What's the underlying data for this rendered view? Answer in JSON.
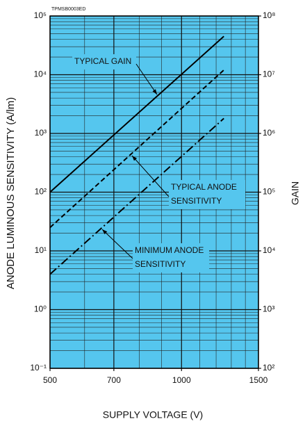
{
  "chart_data": {
    "type": "line",
    "code": "TPMSB0003ED",
    "xlabel": "SUPPLY VOLTAGE (V)",
    "ylabel": "ANODE LUMINOUS SENSITIVITY (A/lm)",
    "y2label": "GAIN",
    "xscale": "log",
    "yscale": "log",
    "y2scale": "log",
    "background": "#55c6ee",
    "grid": true,
    "xlim": [
      500,
      1500
    ],
    "xticks": [
      500,
      700,
      1000,
      1500
    ],
    "ylim": [
      0.1,
      100000
    ],
    "yticks": [
      {
        "value": 0.1,
        "label": "10⁻¹"
      },
      {
        "value": 1,
        "label": "10⁰"
      },
      {
        "value": 10,
        "label": "10¹"
      },
      {
        "value": 100,
        "label": "10²"
      },
      {
        "value": 1000,
        "label": "10³"
      },
      {
        "value": 10000,
        "label": "10⁴"
      },
      {
        "value": 100000,
        "label": "10⁵"
      }
    ],
    "y2lim": [
      100,
      100000000
    ],
    "y2ticks": [
      {
        "value": 100,
        "label": "10²"
      },
      {
        "value": 1000,
        "label": "10³"
      },
      {
        "value": 10000,
        "label": "10⁴"
      },
      {
        "value": 100000,
        "label": "10⁵"
      },
      {
        "value": 1000000,
        "label": "10⁶"
      },
      {
        "value": 10000000,
        "label": "10⁷"
      },
      {
        "value": 100000000,
        "label": "10⁸"
      }
    ],
    "x": [
      500,
      1250
    ],
    "series": [
      {
        "name": "TYPICAL GAIN",
        "color": "#000000",
        "dash": "solid",
        "axis": "y2",
        "values": [
          100000,
          45000000
        ]
      },
      {
        "name": "TYPICAL ANODE SENSITIVITY",
        "color": "#000000",
        "dash": "dashed",
        "values": [
          25,
          12000
        ]
      },
      {
        "name": "MINIMUM ANODE SENSITIVITY",
        "color": "#000000",
        "dash": "dashdot",
        "values": [
          4,
          1800
        ]
      }
    ],
    "annotations": [
      {
        "lines": [
          "TYPICAL GAIN"
        ]
      },
      {
        "lines": [
          "TYPICAL ANODE",
          "SENSITIVITY"
        ]
      },
      {
        "lines": [
          "MINIMUM ANODE",
          "SENSITIVITY"
        ]
      }
    ]
  }
}
